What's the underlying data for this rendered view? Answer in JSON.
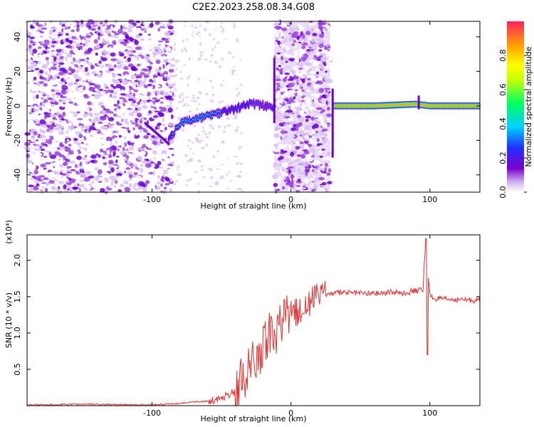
{
  "figure": {
    "title": "C2E2.2023.258.08.34.G08"
  },
  "chart_data": [
    {
      "type": "heatmap",
      "xlabel": "Height of straight line (km)",
      "ylabel": "Frequency (Hz)",
      "xlim": [
        -190,
        136
      ],
      "ylim": [
        -50,
        49
      ],
      "xticks": [
        -100,
        0,
        100
      ],
      "yticks": [
        -40,
        -20,
        0,
        20,
        40
      ],
      "colorbar": {
        "label": "Normalized spectral amplitude",
        "range": [
          0.0,
          1.0
        ],
        "ticks": [
          0.0,
          0.2,
          0.4,
          0.6,
          0.8
        ],
        "colors": [
          "#ffffff",
          "#7a00d0",
          "#2030ff",
          "#00d0ff",
          "#00ff60",
          "#ffff00",
          "#ffa000",
          "#ff2040"
        ]
      },
      "grid": false,
      "ridge": {
        "description_points_x": [
          -88,
          -80,
          -70,
          -60,
          -50,
          -40,
          -32,
          -25,
          -18,
          -12,
          30,
          60,
          90,
          100,
          136
        ],
        "frequency_hz": [
          -20,
          -10,
          -8,
          -6,
          -4,
          -2,
          1,
          1,
          0,
          -3,
          0,
          0,
          1,
          0,
          0
        ],
        "peak_amplitude": [
          0.3,
          0.45,
          0.4,
          0.4,
          0.35,
          0.3,
          0.3,
          0.25,
          0.2,
          0.3,
          0.95,
          0.95,
          0.95,
          0.95,
          0.95
        ]
      },
      "noise_bands_x": [
        [
          -190,
          -85
        ],
        [
          -12,
          28
        ]
      ]
    },
    {
      "type": "line",
      "xlabel": "Height of straight line (km)",
      "ylabel": "SNR (10 * v/v)",
      "y_multiplier": "(x10⁴)",
      "xlim": [
        -190,
        136
      ],
      "ylim": [
        0,
        2.35
      ],
      "xticks": [
        -100,
        0,
        100
      ],
      "yticks": [
        0.5,
        1.0,
        1.5,
        2.0
      ],
      "grid": false,
      "series": [
        {
          "color": "#e83030",
          "x": [
            -190,
            -150,
            -100,
            -80,
            -70,
            -60,
            -50,
            -40,
            -35,
            -30,
            -25,
            -20,
            -15,
            -10,
            -5,
            0,
            5,
            10,
            15,
            20,
            25,
            30,
            40,
            50,
            60,
            70,
            80,
            90,
            95,
            97,
            98,
            99,
            100,
            102,
            105,
            110,
            120,
            130,
            136
          ],
          "y": [
            0.01,
            0.02,
            0.01,
            0.03,
            0.05,
            0.06,
            0.1,
            0.2,
            0.35,
            0.5,
            0.65,
            0.85,
            0.95,
            1.05,
            1.15,
            1.25,
            1.3,
            1.38,
            1.45,
            1.5,
            1.53,
            1.55,
            1.56,
            1.55,
            1.55,
            1.56,
            1.55,
            1.58,
            1.6,
            2.3,
            0.7,
            1.75,
            1.52,
            1.48,
            1.47,
            1.46,
            1.46,
            1.45,
            1.45
          ]
        }
      ]
    }
  ]
}
